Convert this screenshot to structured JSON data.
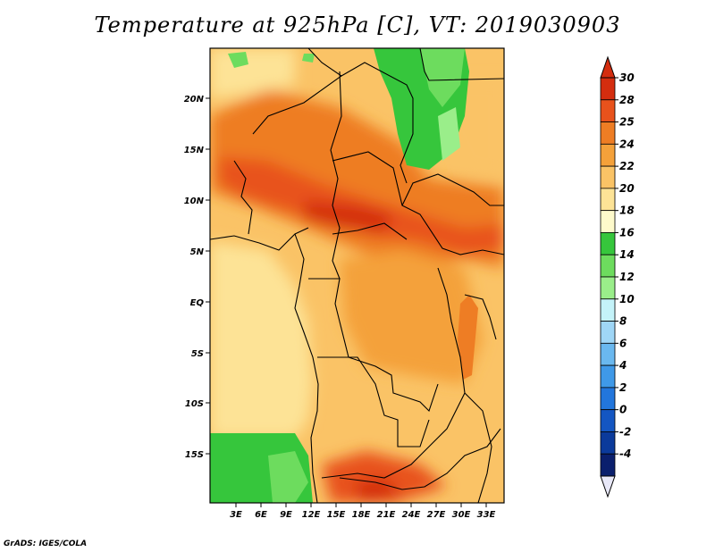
{
  "title": "Temperature at 925hPa [C], VT: 2019030903",
  "credit": "GrADS: IGES/COLA",
  "axes": {
    "lat_labels": [
      "20N",
      "15N",
      "10N",
      "5N",
      "EQ",
      "5S",
      "10S",
      "15S"
    ],
    "lon_labels": [
      "3E",
      "6E",
      "9E",
      "12E",
      "15E",
      "18E",
      "21E",
      "24E",
      "27E",
      "30E",
      "33E"
    ]
  },
  "colorbar": {
    "labels": [
      "30",
      "28",
      "25",
      "24",
      "22",
      "20",
      "18",
      "16",
      "14",
      "12",
      "10",
      "8",
      "6",
      "4",
      "2",
      "0",
      "-2",
      "-4"
    ],
    "colors": [
      "#d42d0f",
      "#e8521c",
      "#ee7d24",
      "#f4a13a",
      "#fac366",
      "#fde396",
      "#fefacb",
      "#36c63c",
      "#6ddc5e",
      "#9aee8a",
      "#c4f3f9",
      "#9fd6f6",
      "#6ab8ef",
      "#3f99e8",
      "#2276dc",
      "#1456c2",
      "#0b3a9b",
      "#0a1f6d"
    ],
    "top_color": "#d42d0f",
    "bottom_color": "#e8e8f8"
  },
  "field_colors": {
    "hot": "#d42d0f",
    "warm": "#e8521c",
    "orange": "#ee7d24",
    "light_orange": "#f4a13a",
    "tan": "#fac366",
    "pale": "#fde396",
    "green": "#36c63c",
    "light_green": "#6ddc5e",
    "border": "#000000"
  }
}
